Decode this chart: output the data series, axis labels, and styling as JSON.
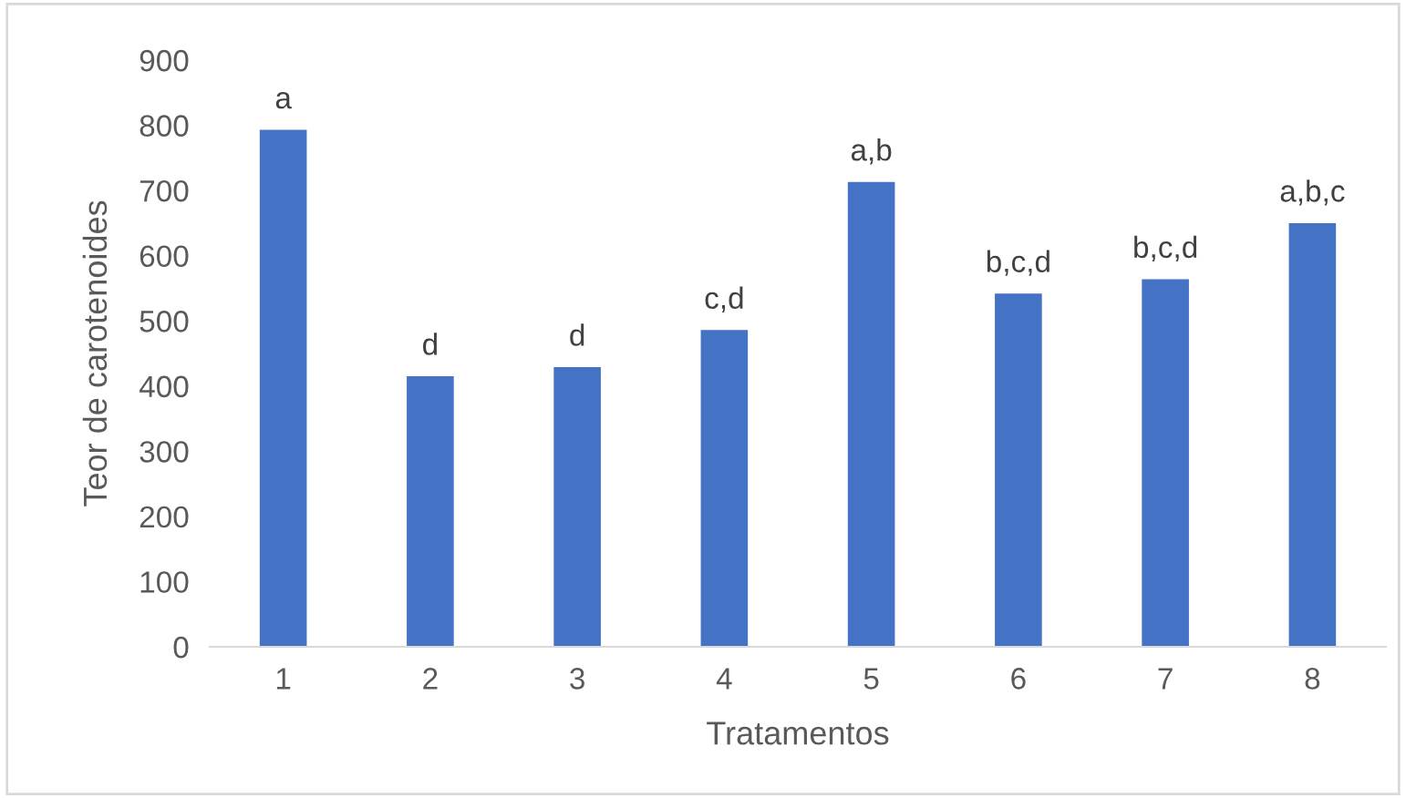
{
  "chart_data": {
    "type": "bar",
    "xlabel": "Tratamentos",
    "ylabel": "Teor de carotenoides",
    "categories": [
      "1",
      "2",
      "3",
      "4",
      "5",
      "6",
      "7",
      "8"
    ],
    "values": [
      793,
      415,
      429,
      486,
      713,
      542,
      564,
      650
    ],
    "color": "#4472c4",
    "ylim": [
      0,
      900
    ],
    "yticks": [
      0,
      100,
      200,
      300,
      400,
      500,
      600,
      700,
      800,
      900
    ],
    "grid": false,
    "annotations": [
      {
        "text": "a",
        "x": "1",
        "y": 793
      },
      {
        "text": "d",
        "x": "2",
        "y": 415
      },
      {
        "text": "d",
        "x": "3",
        "y": 429
      },
      {
        "text": "c,d",
        "x": "4",
        "y": 486
      },
      {
        "text": "a,b",
        "x": "5",
        "y": 713
      },
      {
        "text": "b,c,d",
        "x": "6",
        "y": 542
      },
      {
        "text": "b,c,d",
        "x": "7",
        "y": 564
      },
      {
        "text": "a,b,c",
        "x": "8",
        "y": 650
      }
    ]
  }
}
